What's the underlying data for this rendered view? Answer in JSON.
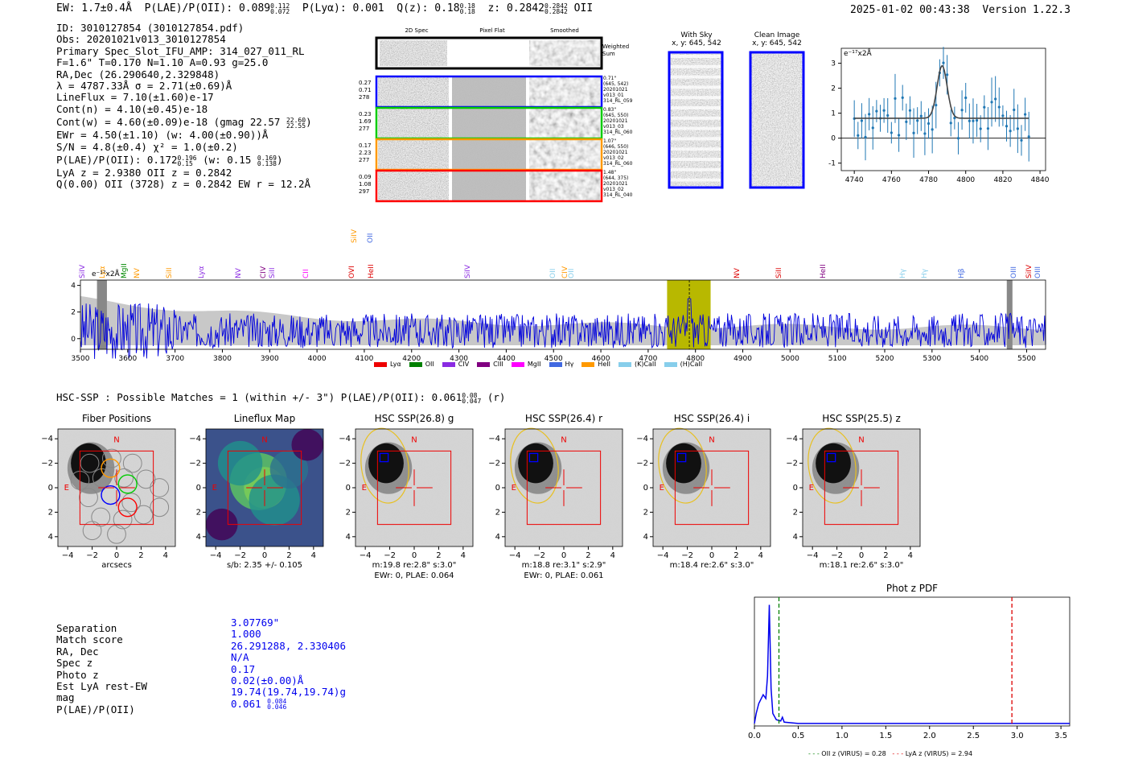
{
  "header": {
    "ew": "EW: 1.7±0.4Å",
    "plae_label": "P(LAE)/P(OII): 0.089",
    "plae_hi": "0.112",
    "plae_lo": "0.072",
    "plya": "P(Lyα): 0.001",
    "qz_label": "Q(z): 0.18",
    "qz_hi": "0.18",
    "qz_lo": "0.18",
    "z_label": "z: 0.2842",
    "z_hi": "0.2842",
    "z_lo": "0.2842",
    "z_line": "OII",
    "timestamp": "2025-01-02 00:43:38",
    "version": "Version 1.22.3"
  },
  "info": {
    "id": "ID: 3010127854 (3010127854.pdf)",
    "obs": "Obs: 20201021v013_3010127854",
    "primary": "Primary Spec_Slot_IFU_AMP: 314_027_011_RL",
    "params": "F=1.6\"  T=0.170  N=1.10  A=0.93  g=25.0",
    "radec": "RA,Dec (26.290640,2.329848)",
    "lambda": "λ = 4787.33Å  σ = 2.71(±0.69)Å",
    "lineflux": "LineFlux = 7.10(±1.60)e-17",
    "contn": "Cont(n) = 4.10(±0.45)e-18",
    "contw": "Cont(w) = 4.60(±0.09)e-18 (gmag 22.57",
    "contw_hi": "22.60",
    "contw_lo": "22.55",
    "ewr": "EWr = 4.50(±1.10) (w: 4.00(±0.90))Å",
    "sn": "S/N = 4.8(±0.4)  χ² = 1.0(±0.2)",
    "plae": "P(LAE)/P(OII): 0.172",
    "plae_hi": "0.196",
    "plae_lo": "0.15",
    "plae_w": "(w: 0.15",
    "plae_w_hi": "0.169",
    "plae_w_lo": "0.138",
    "lya": "LyA z = 2.9380  OII z = 0.2842",
    "q": "Q(0.00) OII (3728) z = 0.2842  EW r = 12.2Å"
  },
  "cutouts": {
    "col_2d": "2D Spec",
    "col_flat": "Pixel Flat",
    "col_smooth": "Smoothed",
    "weighted": "Weighted Sum",
    "rows": [
      {
        "n1": "0.27",
        "n2": "0.71",
        "n3": "278",
        "r1": "0.71\"",
        "r2": "(645, 542)",
        "r3": "20201021",
        "r4": "v013_01",
        "r5": "314_RL_059",
        "color": "#0000ff"
      },
      {
        "n1": "0.23",
        "n2": "1.69",
        "n3": "277",
        "r1": "0.83\"",
        "r2": "(645, 550)",
        "r3": "20201021",
        "r4": "v013_03",
        "r5": "314_RL_060",
        "color": "#00cc00"
      },
      {
        "n1": "0.17",
        "n2": "2.23",
        "n3": "277",
        "r1": "1.07\"",
        "r2": "(646, 550)",
        "r3": "20201021",
        "r4": "v013_02",
        "r5": "314_RL_060",
        "color": "#ff9900"
      },
      {
        "n1": "0.09",
        "n2": "1.08",
        "n3": "297",
        "r1": "1.48\"",
        "r2": "(644, 375)",
        "r3": "20201021",
        "r4": "v013_02",
        "r5": "314_RL_040",
        "color": "#ff0000"
      }
    ]
  },
  "sky": {
    "with_sky": "With Sky",
    "with_sky_xy": "x, y: 645, 542",
    "clean": "Clean Image",
    "clean_xy": "x, y: 645, 542"
  },
  "line_fit": {
    "unit": "e⁻¹⁷x2Å",
    "xticks": [
      "4740",
      "4760",
      "4780",
      "4800",
      "4820",
      "4840"
    ],
    "yticks": [
      "3",
      "2",
      "1",
      "0",
      "-1"
    ]
  },
  "spectrum": {
    "unit": "e⁻¹⁷x2Å",
    "xticks": [
      "3500",
      "3600",
      "3700",
      "3800",
      "3900",
      "4000",
      "4100",
      "4200",
      "4300",
      "4400",
      "4500",
      "4600",
      "4700",
      "4800",
      "4900",
      "5000",
      "5100",
      "5200",
      "5300",
      "5400",
      "5500"
    ],
    "yticks": [
      "4",
      "2",
      "0"
    ],
    "lines": [
      {
        "t": "SiIV",
        "c": "#8a2be2"
      },
      {
        "t": "Lyα",
        "c": "#ff9900"
      },
      {
        "t": "MgII",
        "c": "#008800"
      },
      {
        "t": "NV",
        "c": "#ff9900"
      },
      {
        "t": "SiII",
        "c": "#ff9900"
      },
      {
        "t": "Lyα",
        "c": "#8a2be2"
      },
      {
        "t": "NV",
        "c": "#8a2be2"
      },
      {
        "t": "CIV",
        "c": "#800080"
      },
      {
        "t": "SiII",
        "c": "#8a2be2"
      },
      {
        "t": "CII",
        "c": "#ff00ff"
      },
      {
        "t": "OVI",
        "c": "#dd0000"
      },
      {
        "t": "HeII",
        "c": "#dd0000"
      },
      {
        "t": "SiIV",
        "c": "#8a2be2"
      },
      {
        "t": "OII",
        "c": "#87ceeb"
      },
      {
        "t": "CIV",
        "c": "#ff9900"
      },
      {
        "t": "OII",
        "c": "#87ceeb"
      },
      {
        "t": "NV",
        "c": "#dd0000"
      },
      {
        "t": "SiII",
        "c": "#dd0000"
      },
      {
        "t": "HeII",
        "c": "#800080"
      },
      {
        "t": "Hγ",
        "c": "#87ceeb"
      },
      {
        "t": "Hγ",
        "c": "#87ceeb"
      },
      {
        "t": "Hβ",
        "c": "#4169e1"
      },
      {
        "t": "OIII",
        "c": "#4169e1"
      },
      {
        "t": "SiIV",
        "c": "#dd0000"
      },
      {
        "t": "OIII",
        "c": "#4169e1"
      }
    ],
    "top_lines": [
      {
        "t": "SiIV",
        "c": "#ff9900"
      },
      {
        "t": "OII",
        "c": "#4169e1"
      }
    ],
    "legend": [
      {
        "t": "Lyα",
        "c": "#ee0000"
      },
      {
        "t": "OII",
        "c": "#008000"
      },
      {
        "t": "CIV",
        "c": "#8a2be2"
      },
      {
        "t": "CIII",
        "c": "#800080"
      },
      {
        "t": "MgII",
        "c": "#ff00ff"
      },
      {
        "t": "Hγ",
        "c": "#4169e1"
      },
      {
        "t": "HeII",
        "c": "#ff9900"
      },
      {
        "t": "(K)CaII",
        "c": "#87ceeb"
      },
      {
        "t": "(H)CaII",
        "c": "#87ceeb"
      }
    ]
  },
  "hsc": {
    "title": "HSC-SSP : Possible Matches = 1 (within +/- 3\")  P(LAE)/P(OII): 0.061",
    "hi": "0.08",
    "lo": "0.047",
    "band": "(r)"
  },
  "panels": [
    {
      "title": "Fiber Positions",
      "c1": "arcsecs",
      "c2": ""
    },
    {
      "title": "Lineflux Map",
      "c1": "s/b: 2.35 +/- 0.105",
      "c2": ""
    },
    {
      "title": "HSC SSP(26.8) g",
      "c1": "m:19.8  re:2.8\"  s:3.0\"",
      "c2": "EWr: 0, PLAE: 0.064"
    },
    {
      "title": "HSC SSP(26.4) r",
      "c1": "m:18.8  re:3.1\"  s:2.9\"",
      "c2": "EWr: 0, PLAE: 0.061"
    },
    {
      "title": "HSC SSP(26.4) i",
      "c1": "m:18.4  re:2.6\"  s:3.0\"",
      "c2": ""
    },
    {
      "title": "HSC SSP(25.5) z",
      "c1": "m:18.1  re:2.6\"  s:3.0\"",
      "c2": ""
    }
  ],
  "panel_ticks": [
    "−4",
    "−2",
    "0",
    "2",
    "4"
  ],
  "compass": {
    "n": "N",
    "e": "E"
  },
  "match": {
    "labels": [
      "Separation",
      "Match score",
      "RA, Dec",
      "Spec z",
      "Photo z",
      "Est LyA rest-EW",
      "mag",
      "P(LAE)/P(OII)"
    ],
    "values": [
      "3.07769\"",
      "1.000",
      "26.291288, 2.330406",
      "N/A",
      "0.17",
      "0.02(±0.00)Å",
      "19.74(19.74,19.74)g",
      "0.061"
    ],
    "plae_hi": "0.084",
    "plae_lo": "0.046"
  },
  "photz": {
    "title": "Phot z PDF",
    "xticks": [
      "0.0",
      "0.5",
      "1.0",
      "1.5",
      "2.0",
      "2.5",
      "3.0",
      "3.5"
    ],
    "legend_oii": "OII z (VIRUS) = 0.28",
    "legend_lya": "LyA z (VIRUS) = 2.94",
    "oii_z": 0.28,
    "lya_z": 2.94,
    "xmax": 3.6
  },
  "colors": {
    "frame_blue": "#0000ff",
    "hsc_red": "#ee0000",
    "ellipse": "#e8c020",
    "band": "#b8b800"
  }
}
